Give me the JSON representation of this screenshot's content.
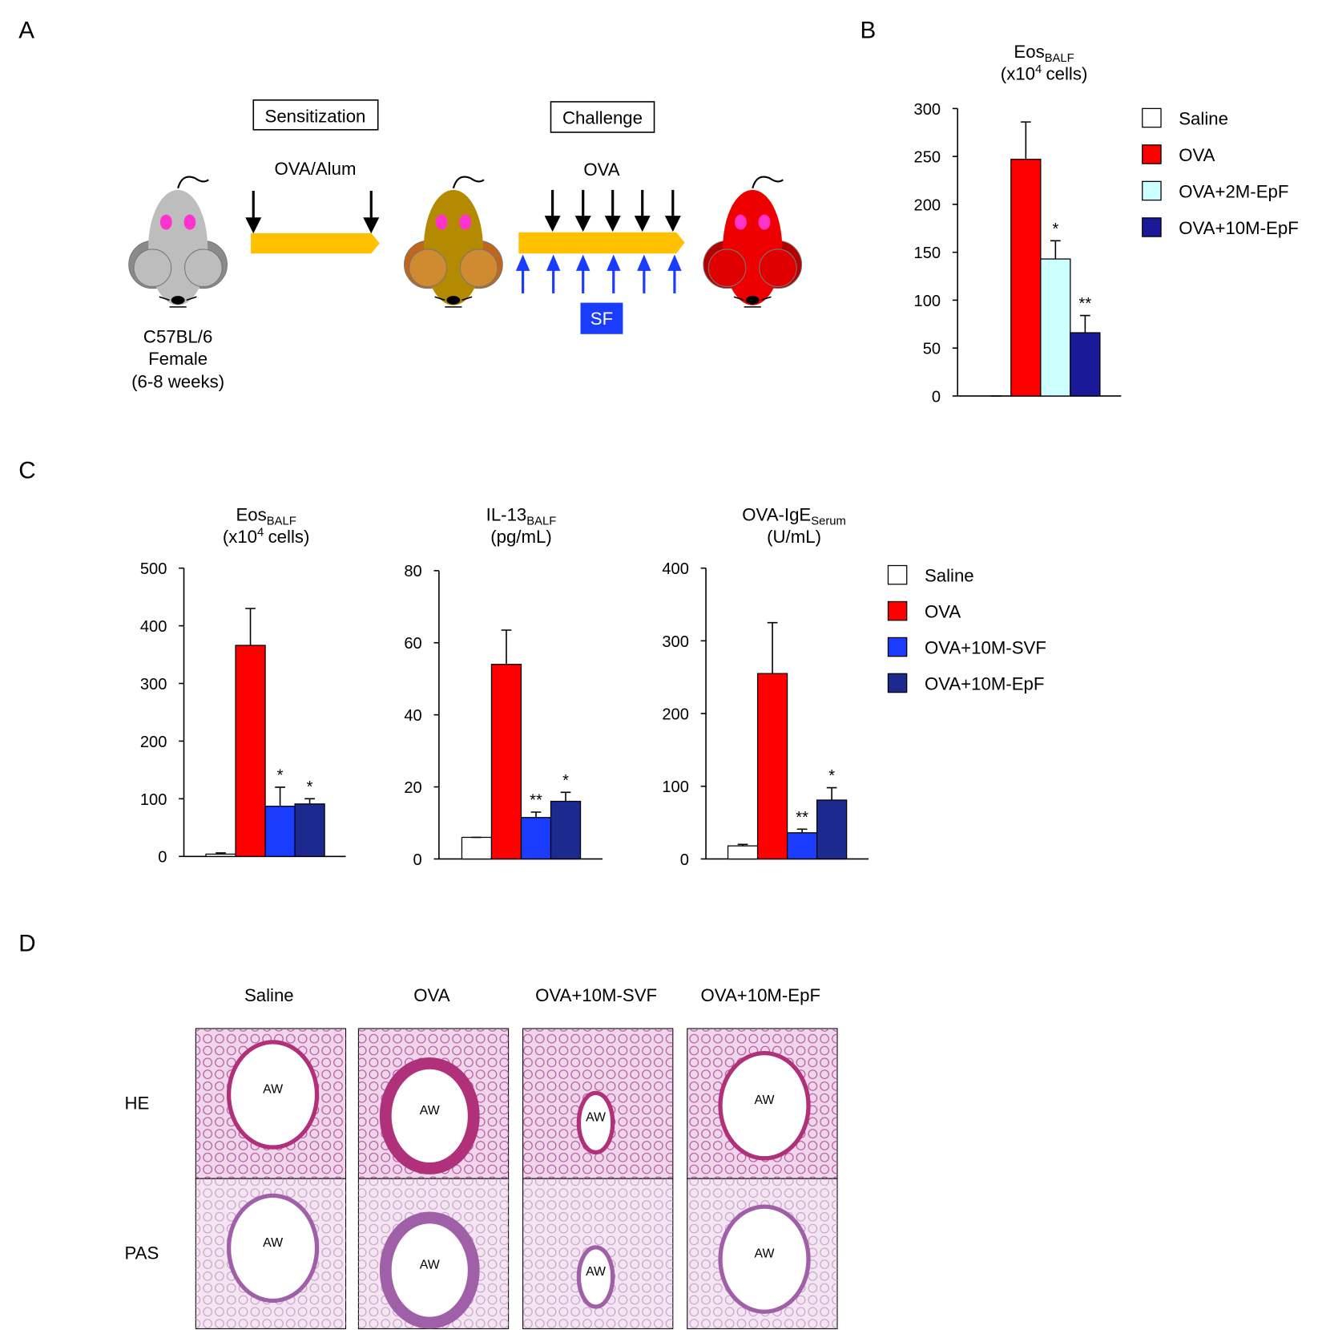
{
  "panel_labels": [
    "A",
    "B",
    "C",
    "D"
  ],
  "diagram": {
    "sensitization": "Sensitization",
    "sensitization_agent": "OVA/Alum",
    "challenge": "Challenge",
    "challenge_agent": "OVA",
    "treatment": "SF",
    "mouse": [
      "C57BL/6",
      "Female",
      "(6-8 weeks)"
    ]
  },
  "chart_data": [
    {
      "type": "bar",
      "title": {
        "main": "Eos",
        "sub": "BALF"
      },
      "unit": {
        "pre": "(x10",
        "sup": "4",
        "post": "cells)"
      },
      "ylim": [
        0,
        300
      ],
      "yticks": [
        0,
        50,
        100,
        150,
        200,
        250,
        300
      ],
      "series": [
        {
          "name": "Saline",
          "color": "#ffffff",
          "values": [
            0
          ],
          "errors": [
            0
          ]
        },
        {
          "name": "OVA",
          "color": "#ff0000",
          "values": [
            247
          ],
          "errors": [
            39
          ]
        },
        {
          "name": "OVA+2M-EpF",
          "color": "#ccffff",
          "values": [
            143
          ],
          "errors": [
            19
          ],
          "annotation": "*"
        },
        {
          "name": "OVA+10M-EpF",
          "color": "#1a1a99",
          "values": [
            66
          ],
          "errors": [
            18
          ],
          "annotation": "**"
        }
      ]
    },
    {
      "type": "bar",
      "title": {
        "main": "Eos",
        "sub": "BALF"
      },
      "unit": {
        "pre": "(x10",
        "sup": "4",
        "post": "cells)"
      },
      "ylim": [
        0,
        500
      ],
      "yticks": [
        0,
        100,
        200,
        300,
        400,
        500
      ],
      "series": [
        {
          "name": "Saline",
          "color": "#ffffff",
          "values": [
            4
          ],
          "errors": [
            2
          ]
        },
        {
          "name": "OVA",
          "color": "#ff0000",
          "values": [
            366
          ],
          "errors": [
            64
          ]
        },
        {
          "name": "OVA+10M-SVF",
          "color": "#1a3cff",
          "values": [
            87
          ],
          "errors": [
            33
          ],
          "annotation": "*"
        },
        {
          "name": "OVA+10M-EpF",
          "color": "#1c2a8f",
          "values": [
            91
          ],
          "errors": [
            9
          ],
          "annotation": "*"
        }
      ]
    },
    {
      "type": "bar",
      "title": {
        "main": "IL-13",
        "sub": "BALF"
      },
      "unit": {
        "pre": "(pg/mL)"
      },
      "ylim": [
        0,
        80
      ],
      "yticks": [
        0,
        20,
        40,
        60,
        80
      ],
      "series": [
        {
          "name": "Saline",
          "color": "#ffffff",
          "values": [
            6
          ],
          "errors": [
            0
          ]
        },
        {
          "name": "OVA",
          "color": "#ff0000",
          "values": [
            54
          ],
          "errors": [
            9.5
          ]
        },
        {
          "name": "OVA+10M-SVF",
          "color": "#1a3cff",
          "values": [
            11.5
          ],
          "errors": [
            1.5
          ],
          "annotation": "**"
        },
        {
          "name": "OVA+10M-EpF",
          "color": "#1c2a8f",
          "values": [
            16
          ],
          "errors": [
            2.5
          ],
          "annotation": "*"
        }
      ]
    },
    {
      "type": "bar",
      "title": {
        "main": "OVA-IgE",
        "sub": "Serum"
      },
      "unit": {
        "pre": "(U/mL)"
      },
      "ylim": [
        0,
        400
      ],
      "yticks": [
        0,
        100,
        200,
        300,
        400
      ],
      "series": [
        {
          "name": "Saline",
          "color": "#ffffff",
          "values": [
            18
          ],
          "errors": [
            2
          ]
        },
        {
          "name": "OVA",
          "color": "#ff0000",
          "values": [
            255
          ],
          "errors": [
            70
          ]
        },
        {
          "name": "OVA+10M-SVF",
          "color": "#1a3cff",
          "values": [
            36
          ],
          "errors": [
            5
          ],
          "annotation": "**"
        },
        {
          "name": "OVA+10M-EpF",
          "color": "#1c2a8f",
          "values": [
            81
          ],
          "errors": [
            17
          ],
          "annotation": "*"
        }
      ]
    }
  ],
  "histology": {
    "columns": [
      "Saline",
      "OVA",
      "OVA+10M-SVF",
      "OVA+10M-EpF"
    ],
    "rows": [
      "HE",
      "PAS"
    ],
    "airway_labels": [
      [
        "AW",
        "AW",
        "AW",
        "AW"
      ],
      [
        "AW",
        "AW",
        "AW",
        "AW"
      ]
    ]
  }
}
